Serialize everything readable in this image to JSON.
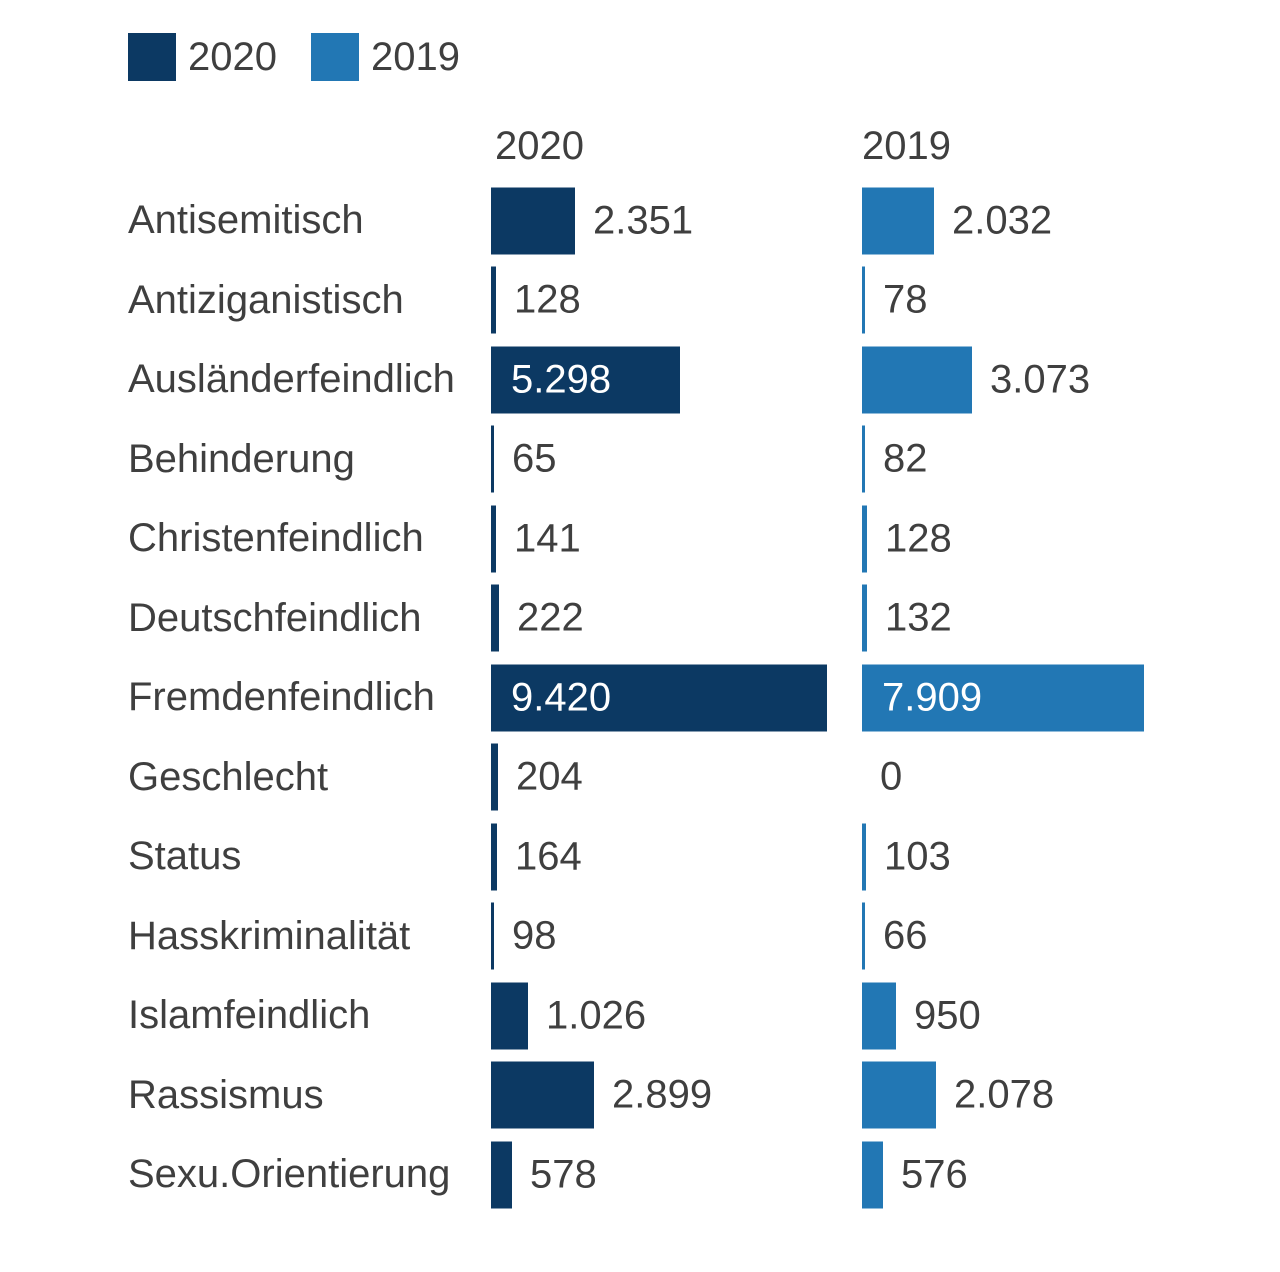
{
  "legend": {
    "items": [
      {
        "label": "2020",
        "color": "#0c3963"
      },
      {
        "label": "2019",
        "color": "#2277b4"
      }
    ]
  },
  "column_headers": {
    "col_2020": "2020",
    "col_2019": "2019"
  },
  "chart_data": {
    "type": "bar",
    "orientation": "horizontal",
    "title": "",
    "categories": [
      "Antisemitisch",
      "Antiziganistisch",
      "Ausländerfeindlich",
      "Behinderung",
      "Christenfeindlich",
      "Deutschfeindlich",
      "Fremdenfeindlich",
      "Geschlecht",
      "Status",
      "Hasskriminalität",
      "Islamfeindlich",
      "Rassismus",
      "Sexu.Orientierung"
    ],
    "series": [
      {
        "name": "2020",
        "color": "#0c3963",
        "values": [
          2351,
          128,
          5298,
          65,
          141,
          222,
          9420,
          204,
          164,
          98,
          1026,
          2899,
          578
        ],
        "value_labels": [
          "2.351",
          "128",
          "5.298",
          "65",
          "141",
          "222",
          "9.420",
          "204",
          "164",
          "98",
          "1.026",
          "2.899",
          "578"
        ]
      },
      {
        "name": "2019",
        "color": "#2277b4",
        "values": [
          2032,
          78,
          3073,
          82,
          128,
          132,
          7909,
          0,
          103,
          66,
          950,
          2078,
          576
        ],
        "value_labels": [
          "2.032",
          "78",
          "3.073",
          "82",
          "128",
          "132",
          "7.909",
          "0",
          "103",
          "66",
          "950",
          "2.078",
          "576"
        ]
      }
    ],
    "x_max": 9420,
    "grid": false,
    "legend_position": "top-left",
    "value_label_inside_color": "#ffffff",
    "value_label_outside_color": "#3f3f3f"
  }
}
